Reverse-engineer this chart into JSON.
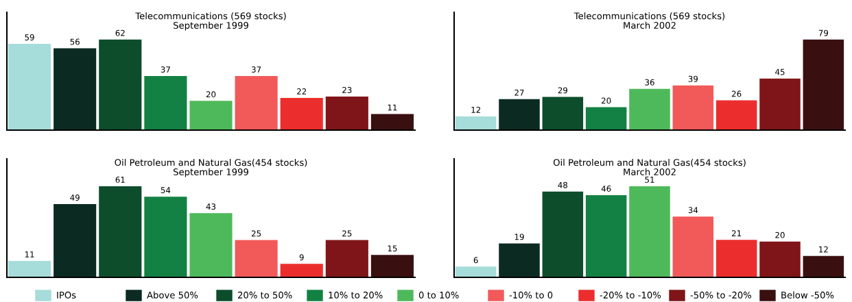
{
  "chart_data": [
    {
      "type": "bar",
      "title": "Telecommunications (569 stocks)",
      "subtitle": "September 1999",
      "categories": [
        null
      ],
      "data_labels": true,
      "tick_labels": false,
      "legend": "bottom",
      "series": [
        {
          "name": "IPOs",
          "color": "#a6dcd9",
          "values": [
            59
          ]
        },
        {
          "name": "Above 50%",
          "color": "#0b2a22",
          "values": [
            56
          ]
        },
        {
          "name": "20% to 50%",
          "color": "#0d4d2b",
          "values": [
            62
          ]
        },
        {
          "name": "10% to 20%",
          "color": "#138143",
          "values": [
            37
          ]
        },
        {
          "name": "0 to 10%",
          "color": "#4eb95a",
          "values": [
            20
          ]
        },
        {
          "name": "-10% to 0",
          "color": "#f25a5a",
          "values": [
            37
          ]
        },
        {
          "name": "-20% to -10%",
          "color": "#ec2d2d",
          "values": [
            22
          ]
        },
        {
          "name": "-50% to -20%",
          "color": "#7f1518",
          "values": [
            23
          ]
        },
        {
          "name": "Below -50%",
          "color": "#3a0f10",
          "values": [
            11
          ]
        }
      ]
    },
    {
      "type": "bar",
      "title": "Telecommunications (569 stocks)",
      "subtitle": "March 2002",
      "categories": [
        null
      ],
      "data_labels": true,
      "tick_labels": false,
      "series": [
        {
          "color": "#a6dcd9",
          "values": [
            12
          ]
        },
        {
          "color": "#0b2a22",
          "values": [
            27
          ]
        },
        {
          "color": "#0d4d2b",
          "values": [
            29
          ]
        },
        {
          "color": "#138143",
          "values": [
            20
          ]
        },
        {
          "color": "#4eb95a",
          "values": [
            36
          ]
        },
        {
          "color": "#f25a5a",
          "values": [
            39
          ]
        },
        {
          "color": "#ec2d2d",
          "values": [
            26
          ]
        },
        {
          "color": "#7f1518",
          "values": [
            45
          ]
        },
        {
          "color": "#3a0f10",
          "values": [
            79
          ]
        }
      ]
    },
    {
      "type": "bar",
      "title": "Oil Petroleum and Natural Gas(454 stocks)",
      "subtitle": "September 1999",
      "categories": [
        null
      ],
      "data_labels": true,
      "tick_labels": false,
      "series": [
        {
          "color": "#a6dcd9",
          "values": [
            11
          ]
        },
        {
          "color": "#0b2a22",
          "values": [
            49
          ]
        },
        {
          "color": "#0d4d2b",
          "values": [
            61
          ]
        },
        {
          "color": "#138143",
          "values": [
            54
          ]
        },
        {
          "color": "#4eb95a",
          "values": [
            43
          ]
        },
        {
          "color": "#f25a5a",
          "values": [
            25
          ]
        },
        {
          "color": "#ec2d2d",
          "values": [
            9
          ]
        },
        {
          "color": "#7f1518",
          "values": [
            25
          ]
        },
        {
          "color": "#3a0f10",
          "values": [
            15
          ]
        }
      ]
    },
    {
      "type": "bar",
      "title": "Oil Petroleum and Natural Gas(454 stocks)",
      "subtitle": "March 2002",
      "categories": [
        null
      ],
      "data_labels": true,
      "tick_labels": false,
      "series": [
        {
          "color": "#a6dcd9",
          "values": [
            6
          ]
        },
        {
          "color": "#0b2a22",
          "values": [
            19
          ]
        },
        {
          "color": "#0d4d2b",
          "values": [
            48
          ]
        },
        {
          "color": "#138143",
          "values": [
            46
          ]
        },
        {
          "color": "#4eb95a",
          "values": [
            51
          ]
        },
        {
          "color": "#f25a5a",
          "values": [
            34
          ]
        },
        {
          "color": "#ec2d2d",
          "values": [
            21
          ]
        },
        {
          "color": "#7f1518",
          "values": [
            20
          ]
        },
        {
          "color": "#3a0f10",
          "values": [
            12
          ]
        }
      ]
    }
  ]
}
